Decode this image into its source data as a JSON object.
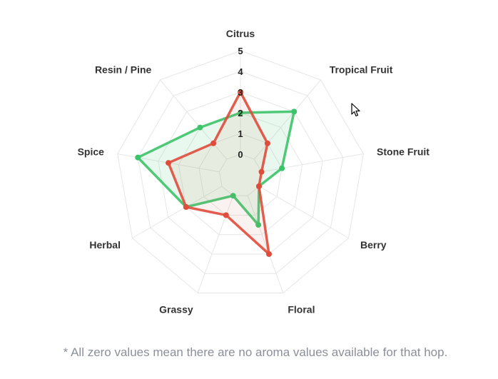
{
  "chart_data": {
    "type": "radar",
    "axes": [
      "Citrus",
      "Tropical Fruit",
      "Stone Fruit",
      "Berry",
      "Floral",
      "Grassy",
      "Herbal",
      "Spice",
      "Resin / Pine"
    ],
    "ticks": [
      "0",
      "1",
      "2",
      "3",
      "4",
      "5"
    ],
    "range": [
      0,
      5
    ],
    "series": [
      {
        "values": [
          2,
          3,
          1,
          0,
          1.5,
          0,
          2,
          4,
          2
        ],
        "color": "#3cc46a",
        "fill": "rgba(60,196,106,0.12)"
      },
      {
        "values": [
          3,
          1,
          0,
          0,
          3,
          1,
          2,
          2.5,
          1
        ],
        "color": "#e04c3c",
        "fill": "rgba(200,120,90,0.10)"
      }
    ],
    "grid": true,
    "legend": "none"
  },
  "footnote": "* All zero values mean there are no aroma values available for that hop.",
  "colors": {
    "grid": "#e6e6e6",
    "text": "#333333",
    "footnote": "#8a8f99"
  }
}
